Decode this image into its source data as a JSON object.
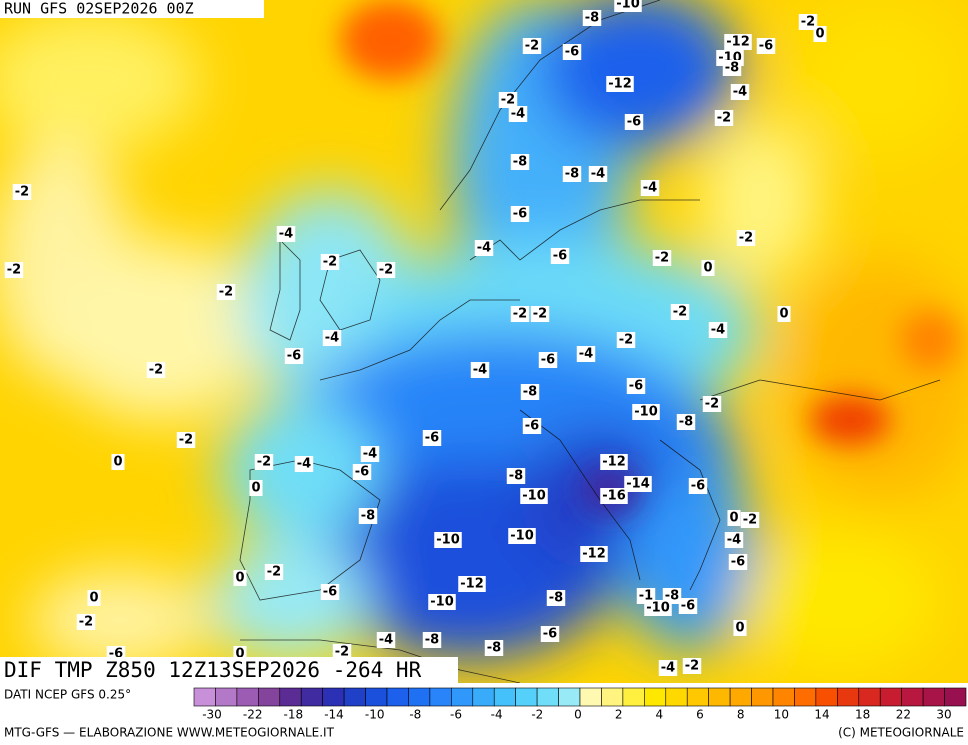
{
  "header": {
    "run": "RUN GFS 02SEP2026 00Z"
  },
  "product": "DIF TMP Z850 12Z13SEP2026 -264 HR",
  "source": "DATI NCEP GFS 0.25°",
  "credit": "MTG-GFS — ELABORAZIONE WWW.METEOGIORNALE.IT",
  "copyright": "(C) METEOGIORNALE",
  "map": {
    "labels": [
      -10,
      -8,
      -2,
      0,
      -2,
      -6,
      -12,
      -6,
      -10,
      -8,
      -12,
      -4,
      -2,
      -4,
      -2,
      -6,
      -8,
      -8,
      -4,
      -4,
      -2,
      -6,
      -4,
      -2,
      -4,
      -6,
      -2,
      0,
      -2,
      -2,
      -2,
      -2,
      -2,
      0,
      -2,
      -2,
      -4,
      -4,
      -2,
      -6,
      -6,
      -4,
      -2,
      -4,
      -6,
      -8,
      -2,
      -10,
      -8,
      -6,
      -6,
      -2,
      -4,
      -2,
      -4,
      0,
      -6,
      -12,
      -8,
      -14,
      -16,
      -6,
      0,
      -10,
      -8,
      0,
      -2,
      -10,
      -10,
      -4,
      -12,
      -6,
      -2,
      0,
      -12,
      -6,
      -1,
      -8,
      0,
      -10,
      -8,
      -10,
      -6,
      -2,
      -4,
      -8,
      -6,
      0,
      -2,
      -8,
      0,
      -6,
      -4,
      -2
    ]
  },
  "colorbar": {
    "colors": [
      "#c890d8",
      "#b478c8",
      "#9c5cb4",
      "#84449c",
      "#5a2c94",
      "#402ca0",
      "#2c30b4",
      "#2040c8",
      "#1a50dc",
      "#1c60ec",
      "#2070f4",
      "#2884f8",
      "#3098fa",
      "#38acfa",
      "#44c0fa",
      "#54d0fa",
      "#70def8",
      "#98eaf6",
      "#fff8b0",
      "#fff480",
      "#fff040",
      "#ffe800",
      "#ffd800",
      "#ffc800",
      "#ffb800",
      "#ffa800",
      "#ff9800",
      "#ff8400",
      "#ff6c00",
      "#f85000",
      "#e83810",
      "#d82820",
      "#c81c30",
      "#b81840",
      "#a81448",
      "#981050"
    ],
    "labels": [
      -30,
      -22,
      -18,
      -14,
      -10,
      -8,
      -6,
      -4,
      -2,
      0,
      2,
      4,
      6,
      8,
      10,
      14,
      18,
      22,
      30
    ]
  }
}
